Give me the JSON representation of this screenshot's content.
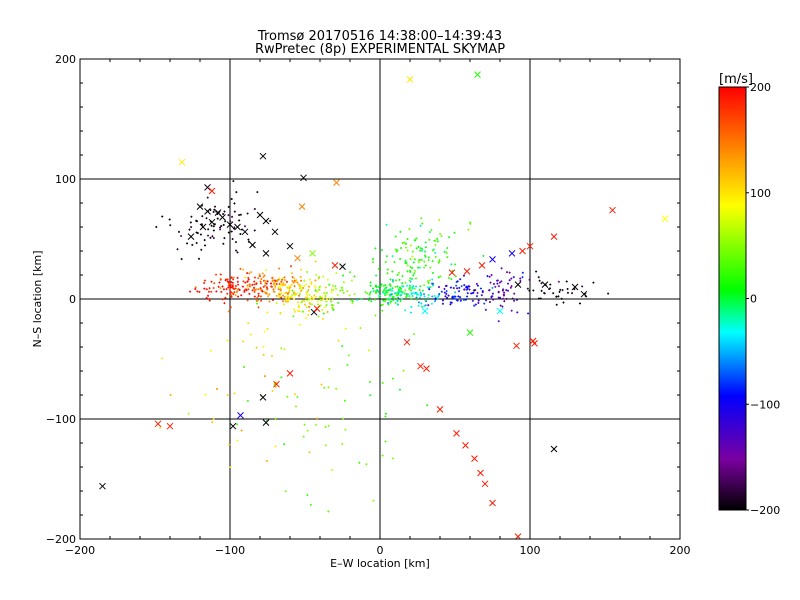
{
  "chart_data": {
    "type": "scatter",
    "title": "Tromsø 20170516 14:38:00–14:39:43",
    "subtitle": "RwPretec (8p) EXPERIMENTAL SKYMAP",
    "xlabel": "E–W location [km]",
    "ylabel": "N–S location [km]",
    "xlim": [
      -200,
      200
    ],
    "ylim": [
      -200,
      200
    ],
    "xticks": [
      -200,
      -100,
      0,
      100,
      200
    ],
    "yticks": [
      -200,
      -100,
      0,
      100,
      200
    ],
    "xtick_labels": [
      "−200",
      "−100",
      "0",
      "100",
      "200"
    ],
    "ytick_labels": [
      "−200",
      "−100",
      "0",
      "100",
      "200"
    ],
    "grid": true,
    "colorbar": {
      "label": "[m/s]",
      "range": [
        -200,
        200
      ],
      "ticks": [
        200,
        100,
        0,
        -100,
        -200
      ],
      "tick_labels": [
        "200",
        "100",
        "0",
        "−100",
        "−200"
      ],
      "colormap": [
        "#000000",
        "#7a00a0",
        "#0000ff",
        "#00ffff",
        "#00ff00",
        "#ffff00",
        "#ff8000",
        "#ff0000"
      ]
    },
    "clusters": [
      {
        "name": "west-red",
        "cx": -95,
        "cy": 10,
        "sx": 14,
        "sy": 6,
        "v": 190,
        "n": 140
      },
      {
        "name": "west-orange",
        "cx": -70,
        "cy": 10,
        "sx": 10,
        "sy": 7,
        "v": 150,
        "n": 90
      },
      {
        "name": "mid-yellow",
        "cx": -55,
        "cy": 2,
        "sx": 10,
        "sy": 9,
        "v": 100,
        "n": 110
      },
      {
        "name": "mid-lightgreen",
        "cx": -35,
        "cy": 6,
        "sx": 10,
        "sy": 8,
        "v": 55,
        "n": 70
      },
      {
        "name": "green-center",
        "cx": 5,
        "cy": 6,
        "sx": 10,
        "sy": 5,
        "v": 10,
        "n": 120
      },
      {
        "name": "green-upper",
        "cx": 25,
        "cy": 35,
        "sx": 14,
        "sy": 14,
        "v": 20,
        "n": 130
      },
      {
        "name": "cyan",
        "cx": 25,
        "cy": 2,
        "sx": 10,
        "sy": 5,
        "v": -30,
        "n": 70
      },
      {
        "name": "blue",
        "cx": 55,
        "cy": 4,
        "sx": 12,
        "sy": 6,
        "v": -100,
        "n": 80
      },
      {
        "name": "darkblue",
        "cx": 80,
        "cy": 8,
        "sx": 10,
        "sy": 10,
        "v": -140,
        "n": 60
      },
      {
        "name": "black-east",
        "cx": 118,
        "cy": 8,
        "sx": 14,
        "sy": 8,
        "v": -200,
        "n": 40
      },
      {
        "name": "black-nw",
        "cx": -110,
        "cy": 60,
        "sx": 14,
        "sy": 10,
        "v": -200,
        "n": 90
      },
      {
        "name": "scatter-green-south",
        "cx": -30,
        "cy": -80,
        "sx": 30,
        "sy": 50,
        "v": 40,
        "n": 60
      },
      {
        "name": "scatter-yellow-west",
        "cx": -85,
        "cy": -60,
        "sx": 25,
        "sy": 40,
        "v": 110,
        "n": 40
      }
    ],
    "cross_markers": [
      {
        "x": -115,
        "y": 93,
        "v": -190
      },
      {
        "x": -112,
        "y": 90,
        "v": 190
      },
      {
        "x": -120,
        "y": 77,
        "v": -200
      },
      {
        "x": -115,
        "y": 73,
        "v": -200
      },
      {
        "x": -108,
        "y": 72,
        "v": -200
      },
      {
        "x": -105,
        "y": 68,
        "v": -200
      },
      {
        "x": -112,
        "y": 64,
        "v": -200
      },
      {
        "x": -100,
        "y": 62,
        "v": -200
      },
      {
        "x": -118,
        "y": 60,
        "v": -200
      },
      {
        "x": -95,
        "y": 60,
        "v": -200
      },
      {
        "x": -90,
        "y": 56,
        "v": -200
      },
      {
        "x": -80,
        "y": 70,
        "v": -200
      },
      {
        "x": -76,
        "y": 65,
        "v": -200
      },
      {
        "x": -70,
        "y": 56,
        "v": -200
      },
      {
        "x": -85,
        "y": 45,
        "v": -200
      },
      {
        "x": -60,
        "y": 44,
        "v": -200
      },
      {
        "x": -76,
        "y": 38,
        "v": -200
      },
      {
        "x": -126,
        "y": 52,
        "v": -200
      },
      {
        "x": -78,
        "y": 119,
        "v": -200
      },
      {
        "x": -51,
        "y": 101,
        "v": -200
      },
      {
        "x": -132,
        "y": 114,
        "v": 100
      },
      {
        "x": -29,
        "y": 97,
        "v": 150
      },
      {
        "x": -52,
        "y": 77,
        "v": 150
      },
      {
        "x": -45,
        "y": 38,
        "v": 50
      },
      {
        "x": -55,
        "y": 34,
        "v": 150
      },
      {
        "x": -30,
        "y": 28,
        "v": 190
      },
      {
        "x": -25,
        "y": 27,
        "v": -200
      },
      {
        "x": 20,
        "y": 183,
        "v": 100
      },
      {
        "x": 65,
        "y": 187,
        "v": 20
      },
      {
        "x": 155,
        "y": 74,
        "v": 190
      },
      {
        "x": 190,
        "y": 67,
        "v": 90
      },
      {
        "x": 116,
        "y": 52,
        "v": 190
      },
      {
        "x": 100,
        "y": 44,
        "v": 190
      },
      {
        "x": 95,
        "y": 40,
        "v": 190
      },
      {
        "x": 88,
        "y": 38,
        "v": -110
      },
      {
        "x": 75,
        "y": 33,
        "v": -110
      },
      {
        "x": 68,
        "y": 28,
        "v": 190
      },
      {
        "x": 58,
        "y": 23,
        "v": 190
      },
      {
        "x": 48,
        "y": 22,
        "v": 190
      },
      {
        "x": 110,
        "y": 12,
        "v": -200
      },
      {
        "x": 130,
        "y": 10,
        "v": -200
      },
      {
        "x": 136,
        "y": 4,
        "v": -200
      },
      {
        "x": 92,
        "y": 12,
        "v": -200
      },
      {
        "x": 80,
        "y": -10,
        "v": -30
      },
      {
        "x": 60,
        "y": -28,
        "v": 20
      },
      {
        "x": 30,
        "y": -10,
        "v": -30
      },
      {
        "x": 18,
        "y": -36,
        "v": 190
      },
      {
        "x": 27,
        "y": -56,
        "v": 190
      },
      {
        "x": 31,
        "y": -58,
        "v": 190
      },
      {
        "x": 40,
        "y": -92,
        "v": 190
      },
      {
        "x": 51,
        "y": -112,
        "v": 190
      },
      {
        "x": 57,
        "y": -122,
        "v": 190
      },
      {
        "x": 63,
        "y": -133,
        "v": 190
      },
      {
        "x": 67,
        "y": -145,
        "v": 190
      },
      {
        "x": 70,
        "y": -154,
        "v": 190
      },
      {
        "x": 75,
        "y": -170,
        "v": 190
      },
      {
        "x": 92,
        "y": -198,
        "v": 190
      },
      {
        "x": 102,
        "y": -35,
        "v": 190
      },
      {
        "x": 103,
        "y": -37,
        "v": 190
      },
      {
        "x": 91,
        "y": -39,
        "v": 190
      },
      {
        "x": 116,
        "y": -125,
        "v": -200
      },
      {
        "x": -185,
        "y": -156,
        "v": -200
      },
      {
        "x": -148,
        "y": -104,
        "v": 190
      },
      {
        "x": -140,
        "y": -106,
        "v": 190
      },
      {
        "x": -93,
        "y": -97,
        "v": -110
      },
      {
        "x": -98,
        "y": -106,
        "v": -200
      },
      {
        "x": -76,
        "y": -103,
        "v": -200
      },
      {
        "x": -78,
        "y": -82,
        "v": -200
      },
      {
        "x": -69,
        "y": -71,
        "v": 190
      },
      {
        "x": -60,
        "y": -62,
        "v": 190
      },
      {
        "x": -44,
        "y": -11,
        "v": -200
      },
      {
        "x": -42,
        "y": -8,
        "v": 190
      }
    ]
  }
}
